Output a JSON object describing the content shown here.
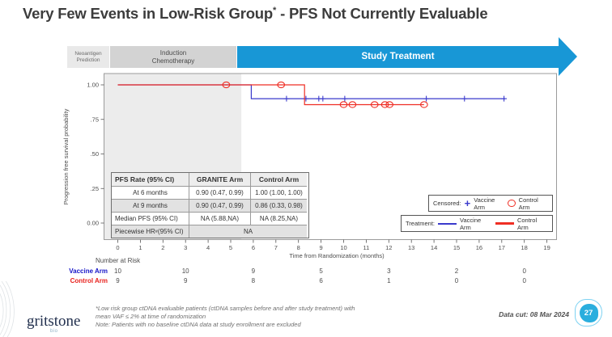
{
  "slide": {
    "title": {
      "pre": "Very Few Events in Low-Risk Group",
      "sup": "*",
      "post": " - PFS Not Currently Evaluable"
    },
    "footnotes": [
      "*Low risk group ctDNA evaluable patients (ctDNA samples before and after study treatment) with",
      "mean VAF ≤ 2% at time of randomization",
      "Note: Patients with no baseline ctDNA data at study enrollment are excluded"
    ],
    "data_cut": "Data cut: 08 Mar 2024",
    "page_number": "27",
    "logo": {
      "name": "gritstone",
      "sub": "bio"
    }
  },
  "phases": {
    "box1_line1": "Neoantigen",
    "box1_line2": "Prediction",
    "box2_line1": "Induction",
    "box2_line2": "Chemotherapy",
    "arrow_label": "Study Treatment",
    "arrow_color": "#1897d6"
  },
  "pfs_table": {
    "header": [
      "PFS Rate  (95% CI)",
      "GRANITE Arm",
      "Control Arm"
    ],
    "rows": [
      {
        "label": "At 6 months",
        "granite": "0.90 (0.47, 0.99)",
        "control": "1.00 (1.00, 1.00)"
      },
      {
        "label": "At 9 months",
        "granite": "0.90 (0.47, 0.99)",
        "control": "0.86 (0.33, 0.98)"
      },
      {
        "label": "Median PFS (95% CI)",
        "granite": "NA (5.88,NA)",
        "control": "NA (8.25,NA)"
      },
      {
        "label_pre": "Piecewise HR",
        "label_sup": "#",
        "label_post": " (95% CI)",
        "span": "NA"
      }
    ]
  },
  "legends": {
    "censored": {
      "title": "Censored:",
      "vaccine": "Vaccine Arm",
      "control": "Control Arm"
    },
    "treatment": {
      "title": "Treatment:",
      "vaccine": "Vaccine Arm",
      "control": "Control Arm"
    }
  },
  "chart_data": {
    "type": "line",
    "subtype": "kaplan-meier-step",
    "title": "",
    "xlabel": "Time from Randomization (months)",
    "ylabel": "Progression free survival probability",
    "xlim": [
      0,
      19
    ],
    "ylim": [
      0,
      1
    ],
    "grid": false,
    "x_ticks": [
      0,
      1,
      2,
      3,
      4,
      5,
      6,
      7,
      8,
      9,
      10,
      11,
      12,
      13,
      14,
      15,
      16,
      17,
      18,
      19
    ],
    "y_ticks": [
      {
        "v": 1.0,
        "label": "1.00"
      },
      {
        "v": 0.75,
        "label": ".75"
      },
      {
        "v": 0.5,
        "label": ".50"
      },
      {
        "v": 0.25,
        "label": ".25"
      },
      {
        "v": 0.0,
        "label": "0.00"
      }
    ],
    "shaded_phase": {
      "end_month": 5.47,
      "color": "#ececec",
      "meaning": "Induction Chemotherapy period"
    },
    "series": [
      {
        "name": "Vaccine Arm",
        "color": "#3a3acc",
        "marker": "plus",
        "steps": [
          [
            0,
            1.0
          ],
          [
            5.91,
            1.0
          ],
          [
            5.91,
            0.9
          ],
          [
            17.15,
            0.9
          ]
        ],
        "censors": [
          [
            7.47,
            0.9
          ],
          [
            8.33,
            0.9
          ],
          [
            8.9,
            0.9
          ],
          [
            9.08,
            0.9
          ],
          [
            10.05,
            0.9
          ],
          [
            13.66,
            0.9
          ],
          [
            15.35,
            0.9
          ],
          [
            17.1,
            0.9
          ]
        ]
      },
      {
        "name": "Control Arm",
        "color": "#ef2e24",
        "marker": "circle",
        "steps": [
          [
            0,
            1.0
          ],
          [
            8.27,
            1.0
          ],
          [
            8.27,
            0.857
          ],
          [
            13.56,
            0.857
          ]
        ],
        "censors": [
          [
            4.8,
            1.0
          ],
          [
            7.23,
            1.0
          ],
          [
            10.0,
            0.857
          ],
          [
            10.39,
            0.857
          ],
          [
            11.37,
            0.857
          ],
          [
            11.83,
            0.857
          ],
          [
            12.03,
            0.857
          ],
          [
            13.56,
            0.857
          ]
        ]
      }
    ],
    "number_at_risk": {
      "label": "Number at Risk",
      "months": [
        0,
        3,
        6,
        9,
        12,
        15,
        18
      ],
      "rows": [
        {
          "name": "Vaccine Arm",
          "color": "#1515c8",
          "values": [
            10,
            10,
            9,
            5,
            3,
            2,
            0
          ]
        },
        {
          "name": "Control Arm",
          "color": "#e8211d",
          "values": [
            9,
            9,
            8,
            6,
            1,
            0,
            0
          ]
        }
      ]
    }
  }
}
